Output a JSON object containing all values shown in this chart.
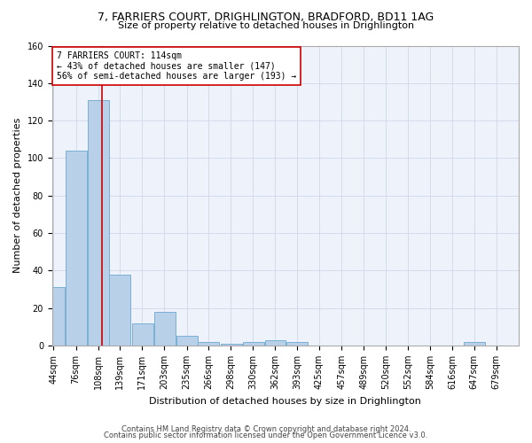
{
  "title": "7, FARRIERS COURT, DRIGHLINGTON, BRADFORD, BD11 1AG",
  "subtitle": "Size of property relative to detached houses in Drighlington",
  "xlabel": "Distribution of detached houses by size in Drighlington",
  "ylabel": "Number of detached properties",
  "footer1": "Contains HM Land Registry data © Crown copyright and database right 2024.",
  "footer2": "Contains public sector information licensed under the Open Government Licence v3.0.",
  "bar_color": "#b8d0e8",
  "bar_edge_color": "#7aafd4",
  "bg_color": "#eef2fb",
  "grid_color": "#d0d8e8",
  "vline_x": 114,
  "vline_color": "#cc0000",
  "annotation_title": "7 FARRIERS COURT: 114sqm",
  "annotation_line2": "← 43% of detached houses are smaller (147)",
  "annotation_line3": "56% of semi-detached houses are larger (193) →",
  "annotation_box_color": "#cc0000",
  "bins": [
    44,
    76,
    108,
    139,
    171,
    203,
    235,
    266,
    298,
    330,
    362,
    393,
    425,
    457,
    489,
    520,
    552,
    584,
    616,
    647,
    679
  ],
  "counts": [
    31,
    104,
    131,
    38,
    12,
    18,
    5,
    2,
    1,
    2,
    3,
    2,
    0,
    0,
    0,
    0,
    0,
    0,
    0,
    2
  ],
  "ylim": [
    0,
    160
  ],
  "yticks": [
    0,
    20,
    40,
    60,
    80,
    100,
    120,
    140,
    160
  ],
  "title_fontsize": 9,
  "subtitle_fontsize": 8,
  "ylabel_fontsize": 8,
  "xlabel_fontsize": 8,
  "tick_fontsize": 7,
  "footer_fontsize": 6
}
